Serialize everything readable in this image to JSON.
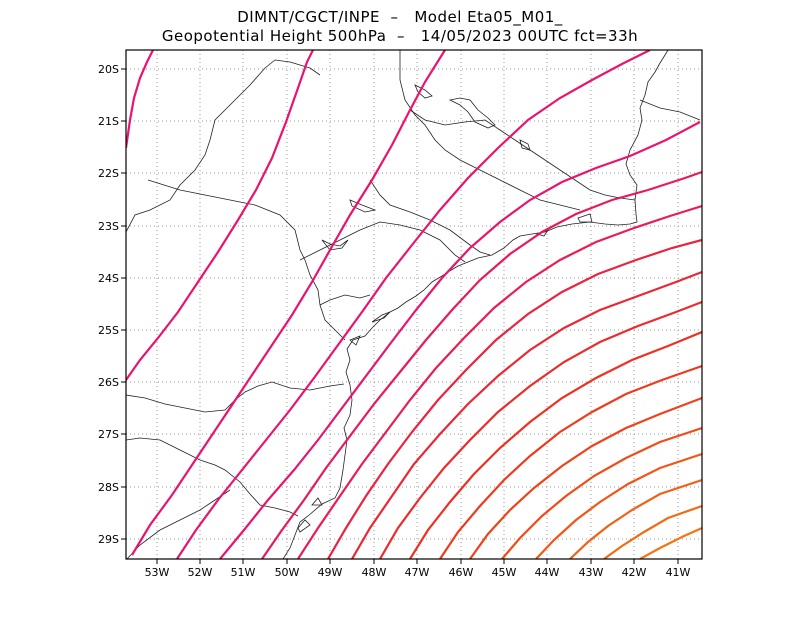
{
  "title": {
    "line1": "DIMNT/CGCT/INPE  –   Model Eta05_M01_",
    "line2": "Geopotential Height 500hPa  –   14/05/2023 00UTC fct=33h"
  },
  "map": {
    "lon_range": [
      -53.7,
      -40.5
    ],
    "lat_range": [
      -29.4,
      -19.7
    ],
    "lon_ticks": [
      "53W",
      "52W",
      "51W",
      "50W",
      "49W",
      "48W",
      "47W",
      "46W",
      "45W",
      "44W",
      "43W",
      "42W",
      "41W"
    ],
    "lat_ticks": [
      "20S",
      "21S",
      "22S",
      "23S",
      "24S",
      "25S",
      "26S",
      "27S",
      "28S",
      "29S"
    ],
    "contour_colors": [
      "#e8146e",
      "#e8146e",
      "#e8146e",
      "#e8146e",
      "#e8146e",
      "#e8195f",
      "#ea1d50",
      "#eb2240",
      "#ec2635",
      "#ed2b2a",
      "#ee3022",
      "#ef3a1d",
      "#f0421a",
      "#f14b18",
      "#f25516",
      "#f35f14",
      "#f46a12",
      "#f57410"
    ]
  }
}
